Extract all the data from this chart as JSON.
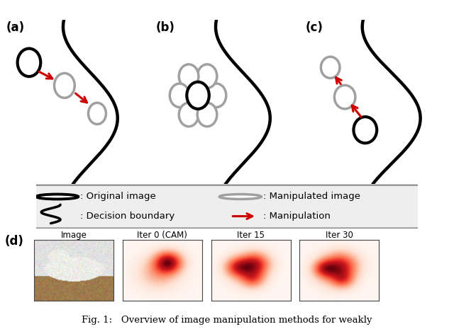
{
  "bg_color": "#ffffff",
  "label_a": "(a)",
  "label_b": "(b)",
  "label_c": "(c)",
  "label_d": "(d)",
  "panel_titles_d": [
    "Image",
    "Iter 0 (CAM)",
    "Iter 15",
    "Iter 30"
  ],
  "fig_caption": "Fig. 1:   Overview of image manipulation methods for weakly",
  "black_circle_color": "#000000",
  "gray_circle_color": "#a0a0a0",
  "red_arrow_color": "#cc0000",
  "boundary_color": "#000000",
  "lw_boundary": 3.2,
  "lw_black_circle": 3.0,
  "lw_gray_circle": 2.5
}
